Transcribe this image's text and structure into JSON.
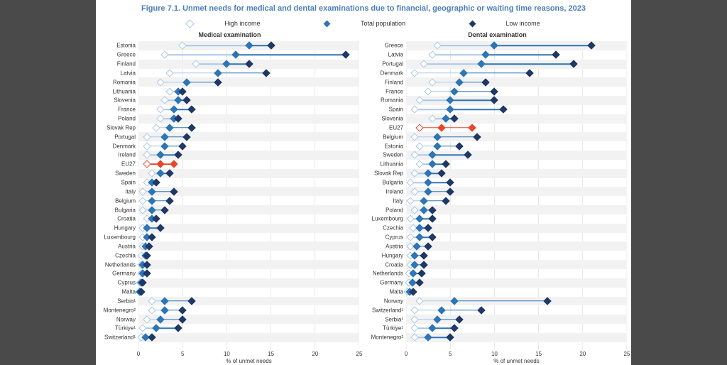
{
  "title": "Figure 7.1. Unmet needs for medical and dental examinations due to financial, geographic or waiting time reasons, 2023",
  "legend": {
    "high": "High income",
    "total": "Total population",
    "low": "Low income"
  },
  "colors": {
    "high": "#a9c7e8",
    "high_fill": "#ffffff",
    "total": "#2e75b6",
    "total_fill": "#2e75b6",
    "low": "#1f3864",
    "low_fill": "#1f3864",
    "eu": "#e8462d",
    "grid": "#d0d0d0",
    "row_shade": "#f2f2f2",
    "bg": "#ffffff",
    "text": "#333333",
    "title": "#4a7ebb"
  },
  "chart": {
    "type": "dot-range",
    "xmin": 0,
    "xmax": 25,
    "xtick_step": 5,
    "xlabel": "% of unmet needs",
    "title_fontsize": 11,
    "label_fontsize": 8,
    "tick_fontsize": 8,
    "marker_size": 6,
    "groups": [
      [
        0,
        27
      ],
      [
        28,
        32
      ]
    ]
  },
  "panels": [
    {
      "title": "Medical examination",
      "rows": [
        {
          "label": "Estonia",
          "high": 5.0,
          "total": 12.5,
          "low": 15.0
        },
        {
          "label": "Greece",
          "high": 3.0,
          "total": 11.0,
          "low": 23.5
        },
        {
          "label": "Finland",
          "high": 6.5,
          "total": 10.0,
          "low": 12.5
        },
        {
          "label": "Latvia",
          "high": 3.5,
          "total": 9.0,
          "low": 14.5
        },
        {
          "label": "Romania",
          "high": 2.5,
          "total": 5.5,
          "low": 9.0
        },
        {
          "label": "Lithuania",
          "high": 3.5,
          "total": 4.5,
          "low": 5.0
        },
        {
          "label": "Slovenia",
          "high": 3.0,
          "total": 4.5,
          "low": 5.5
        },
        {
          "label": "France",
          "high": 2.5,
          "total": 4.0,
          "low": 6.0
        },
        {
          "label": "Poland",
          "high": 2.5,
          "total": 4.0,
          "low": 4.5
        },
        {
          "label": "Slovak Rep",
          "high": 2.0,
          "total": 3.5,
          "low": 6.0
        },
        {
          "label": "Portugal",
          "high": 1.0,
          "total": 3.0,
          "low": 5.5
        },
        {
          "label": "Denmark",
          "high": 1.0,
          "total": 3.0,
          "low": 5.0
        },
        {
          "label": "Ireland",
          "high": 1.0,
          "total": 2.5,
          "low": 4.5
        },
        {
          "label": "EU27",
          "high": 1.0,
          "total": 2.5,
          "low": 4.0,
          "color": "eu"
        },
        {
          "label": "Sweden",
          "high": 1.5,
          "total": 2.5,
          "low": 3.5
        },
        {
          "label": "Spain",
          "high": 1.0,
          "total": 1.5,
          "low": 2.0
        },
        {
          "label": "Italy",
          "high": 0.5,
          "total": 1.5,
          "low": 4.0
        },
        {
          "label": "Belgium",
          "high": 0.5,
          "total": 1.5,
          "low": 3.5
        },
        {
          "label": "Bulgaria",
          "high": 0.5,
          "total": 1.5,
          "low": 3.0
        },
        {
          "label": "Croatia",
          "high": 1.0,
          "total": 1.5,
          "low": 2.0
        },
        {
          "label": "Hungary",
          "high": 0.5,
          "total": 1.0,
          "low": 2.5
        },
        {
          "label": "Luxembourg",
          "high": 0.5,
          "total": 1.0,
          "low": 1.5
        },
        {
          "label": "Austria",
          "high": 0.5,
          "total": 0.8,
          "low": 1.2
        },
        {
          "label": "Czechia",
          "high": 0.3,
          "total": 0.8,
          "low": 1.0
        },
        {
          "label": "Netherlands",
          "high": 0.3,
          "total": 0.5,
          "low": 1.0
        },
        {
          "label": "Germany",
          "high": 0.3,
          "total": 0.5,
          "low": 1.0
        },
        {
          "label": "Cyprus",
          "high": 0.2,
          "total": 0.3,
          "low": 0.5
        },
        {
          "label": "Malta",
          "high": 0.1,
          "total": 0.2,
          "low": 0.3
        },
        {
          "label": "Serbia¹",
          "high": 1.5,
          "total": 3.0,
          "low": 6.0
        },
        {
          "label": "Montenegro²",
          "high": 1.5,
          "total": 3.0,
          "low": 5.0
        },
        {
          "label": "Norway",
          "high": 1.0,
          "total": 2.5,
          "low": 5.0
        },
        {
          "label": "Türkiye¹",
          "high": 0.5,
          "total": 2.0,
          "low": 4.5
        },
        {
          "label": "Switzerland¹",
          "high": 0.3,
          "total": 0.8,
          "low": 1.5
        }
      ]
    },
    {
      "title": "Dental examination",
      "rows": [
        {
          "label": "Greece",
          "high": 3.5,
          "total": 10.0,
          "low": 21.0
        },
        {
          "label": "Latvia",
          "high": 3.0,
          "total": 9.0,
          "low": 17.0
        },
        {
          "label": "Portugal",
          "high": 2.0,
          "total": 8.5,
          "low": 19.0
        },
        {
          "label": "Denmark",
          "high": 1.0,
          "total": 6.5,
          "low": 14.0
        },
        {
          "label": "Finland",
          "high": 3.0,
          "total": 6.0,
          "low": 9.0
        },
        {
          "label": "France",
          "high": 2.5,
          "total": 5.5,
          "low": 10.0
        },
        {
          "label": "Romania",
          "high": 1.5,
          "total": 5.0,
          "low": 10.0
        },
        {
          "label": "Spain",
          "high": 1.0,
          "total": 5.0,
          "low": 11.0
        },
        {
          "label": "Slovenia",
          "high": 3.0,
          "total": 4.5,
          "low": 5.5
        },
        {
          "label": "EU27",
          "high": 1.5,
          "total": 4.0,
          "low": 7.5,
          "color": "eu"
        },
        {
          "label": "Belgium",
          "high": 1.0,
          "total": 3.5,
          "low": 8.0
        },
        {
          "label": "Estonia",
          "high": 1.5,
          "total": 3.5,
          "low": 6.0
        },
        {
          "label": "Sweden",
          "high": 1.0,
          "total": 3.0,
          "low": 7.0
        },
        {
          "label": "Lithuania",
          "high": 1.5,
          "total": 3.0,
          "low": 4.5
        },
        {
          "label": "Slovak Rep",
          "high": 1.0,
          "total": 2.5,
          "low": 4.0
        },
        {
          "label": "Bulgaria",
          "high": 0.5,
          "total": 2.5,
          "low": 5.0
        },
        {
          "label": "Ireland",
          "high": 1.0,
          "total": 2.5,
          "low": 5.0
        },
        {
          "label": "Italy",
          "high": 0.5,
          "total": 2.0,
          "low": 4.5
        },
        {
          "label": "Poland",
          "high": 1.0,
          "total": 2.0,
          "low": 3.0
        },
        {
          "label": "Luxembourg",
          "high": 0.5,
          "total": 1.5,
          "low": 3.0
        },
        {
          "label": "Czechia",
          "high": 0.8,
          "total": 1.5,
          "low": 2.5
        },
        {
          "label": "Cyprus",
          "high": 0.5,
          "total": 1.5,
          "low": 3.0
        },
        {
          "label": "Austria",
          "high": 0.5,
          "total": 1.2,
          "low": 2.5
        },
        {
          "label": "Hungary",
          "high": 0.5,
          "total": 1.0,
          "low": 2.0
        },
        {
          "label": "Croatia",
          "high": 0.5,
          "total": 1.0,
          "low": 2.0
        },
        {
          "label": "Netherlands",
          "high": 0.3,
          "total": 0.8,
          "low": 1.8
        },
        {
          "label": "Germany",
          "high": 0.3,
          "total": 0.7,
          "low": 1.5
        },
        {
          "label": "Malta",
          "high": 0.2,
          "total": 0.4,
          "low": 0.8
        },
        {
          "label": "Norway",
          "high": 1.5,
          "total": 5.5,
          "low": 16.0
        },
        {
          "label": "Switzerland¹",
          "high": 1.0,
          "total": 4.0,
          "low": 8.5
        },
        {
          "label": "Serbia¹",
          "high": 1.0,
          "total": 3.5,
          "low": 6.0
        },
        {
          "label": "Türkiye¹",
          "high": 1.0,
          "total": 3.0,
          "low": 5.5
        },
        {
          "label": "Montenegro²",
          "high": 1.0,
          "total": 2.5,
          "low": 5.0
        }
      ]
    }
  ]
}
